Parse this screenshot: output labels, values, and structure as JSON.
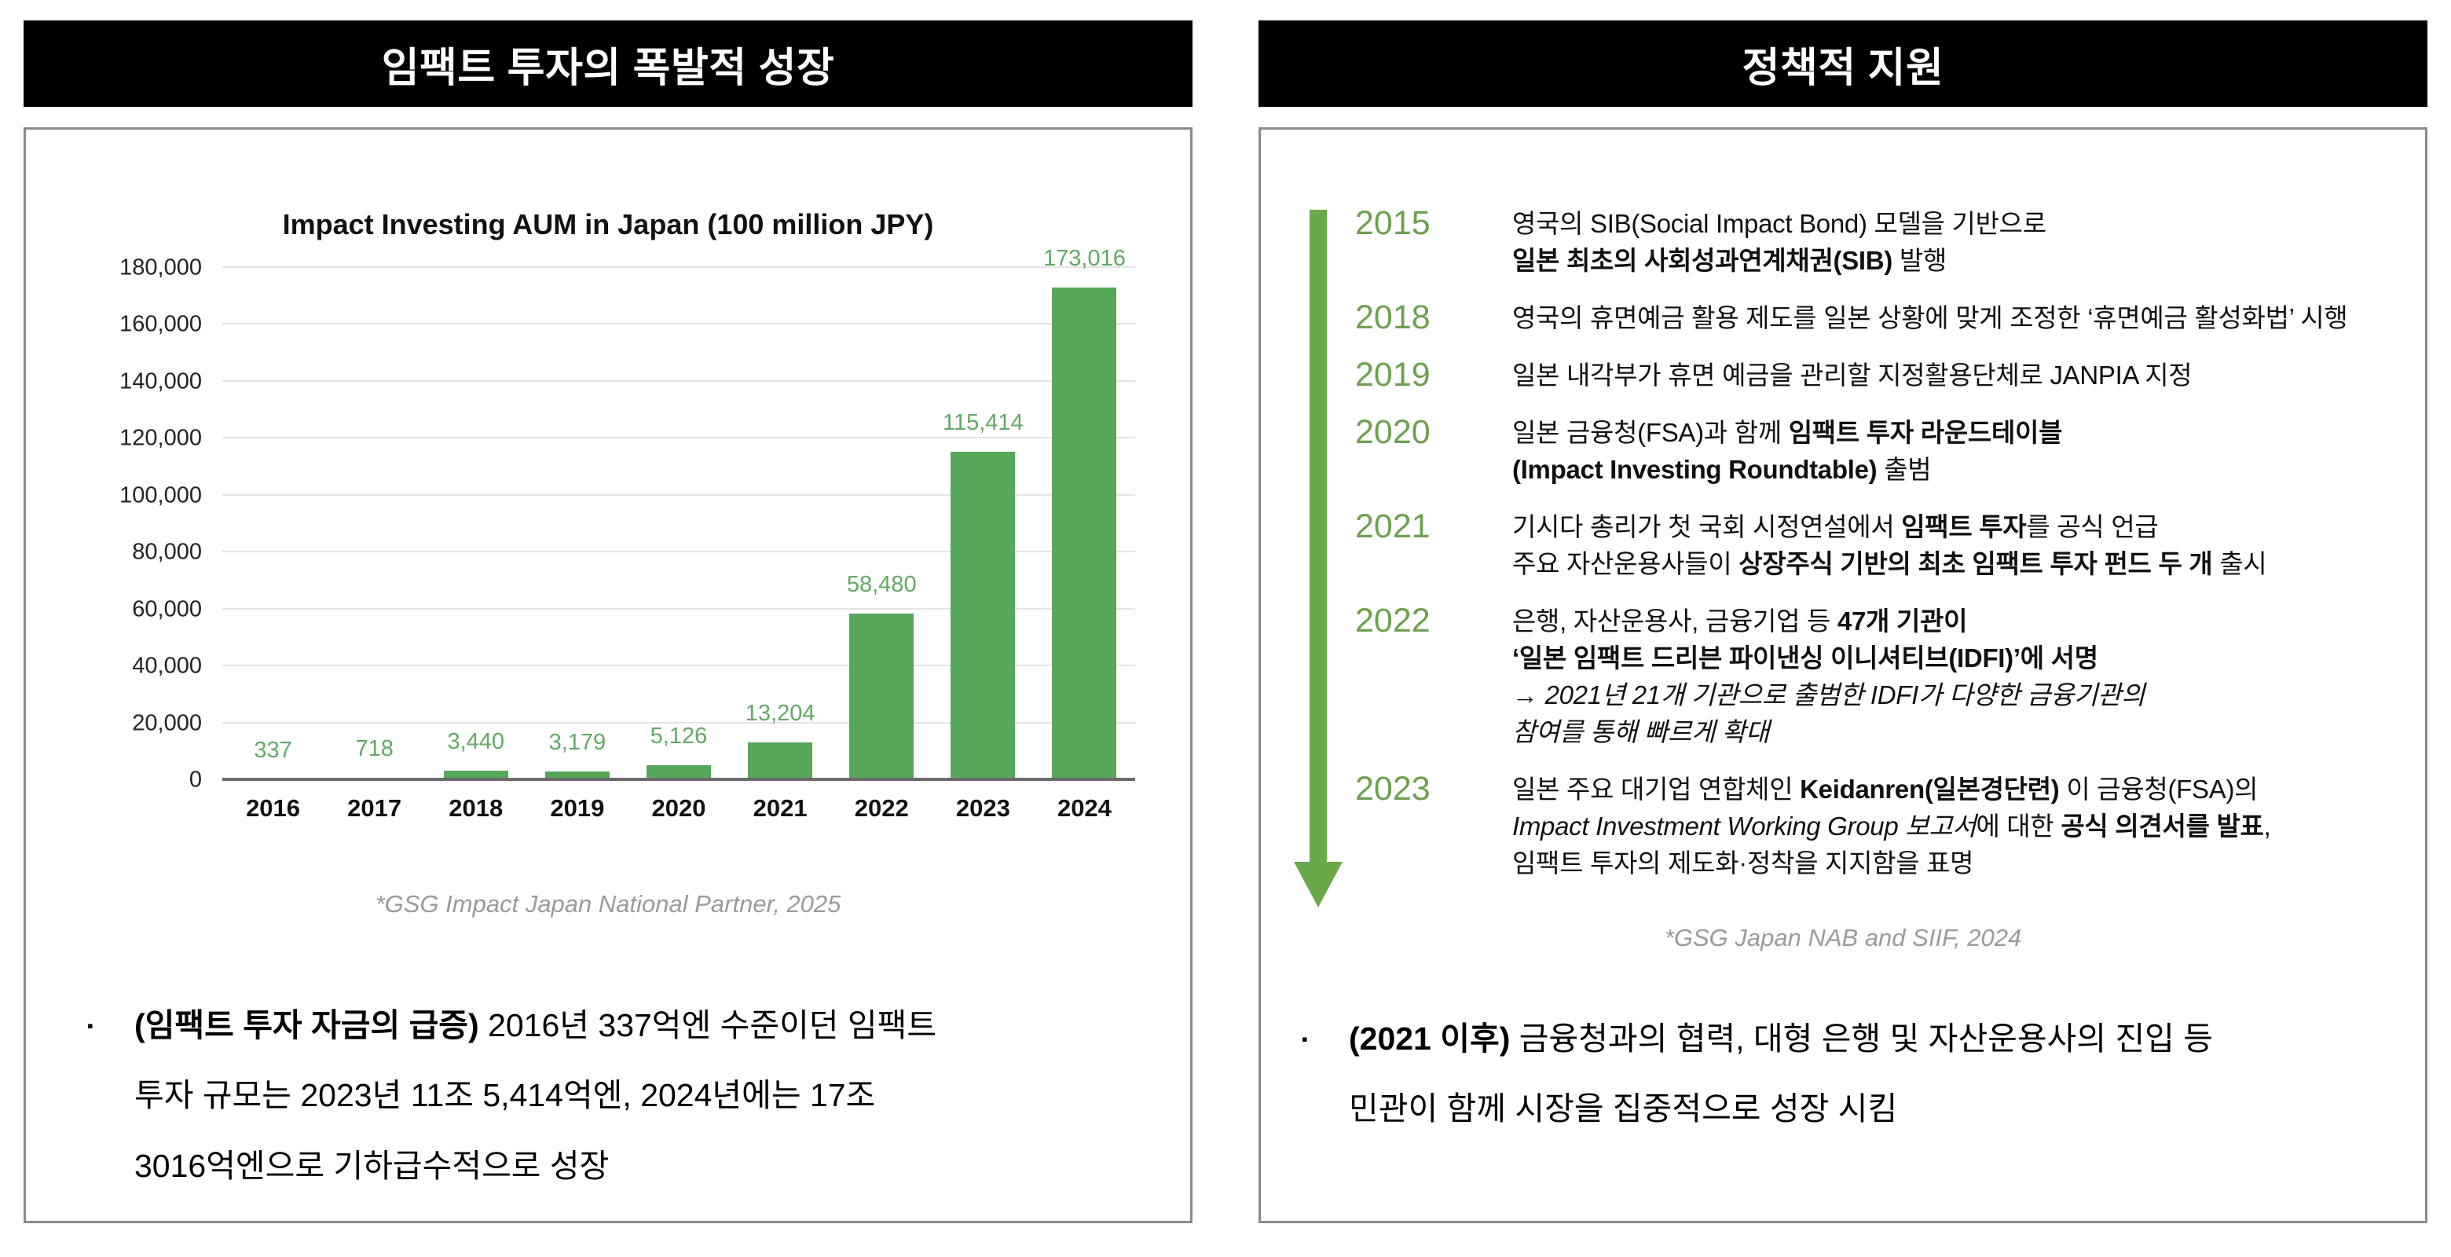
{
  "colors": {
    "header_bg": "#000000",
    "header_fg": "#ffffff",
    "panel_border": "#8a8a8a",
    "grid": "#e4e4e4",
    "axis": "#6b6b6b",
    "bar_green": "#57a75a",
    "value_green": "#63a865",
    "timeline_green": "#6ea04f",
    "arrow_green": "#6aa84c",
    "source_gray": "#9a9a9a"
  },
  "left": {
    "header": "임팩트 투자의 폭발적 성장",
    "source": "*GSG Impact Japan National Partner, 2025",
    "bullet": {
      "marker": "▪",
      "lines": [
        [
          {
            "text": "(임팩트 투자 자금의 급증)",
            "bold": true
          },
          {
            "text": " 2016년 337억엔 수준이던 임팩트"
          }
        ],
        [
          {
            "text": "투자 규모는 2023년 11조 5,414억엔, 2024년에는 17조"
          }
        ],
        [
          {
            "text": "3016억엔으로 기하급수적으로 성장"
          }
        ]
      ]
    }
  },
  "chart_data": {
    "type": "bar",
    "title": "Impact Investing AUM in Japan (100 million JPY)",
    "categories": [
      "2016",
      "2017",
      "2018",
      "2019",
      "2020",
      "2021",
      "2022",
      "2023",
      "2024"
    ],
    "values": [
      337,
      718,
      3440,
      3179,
      5126,
      13204,
      58480,
      115414,
      173016
    ],
    "value_labels": [
      "337",
      "718",
      "3,440",
      "3,179",
      "5,126",
      "13,204",
      "58,480",
      "115,414",
      "173,016"
    ],
    "xlabel": "",
    "ylabel": "",
    "ylim": [
      0,
      180000
    ],
    "ytick_step": 20000,
    "grid": true,
    "legend": "none"
  },
  "right": {
    "header": "정책적 지원",
    "source": "*GSG Japan NAB and SIIF, 2024",
    "timeline": [
      {
        "year": "2015",
        "lines": [
          [
            {
              "text": "영국의 SIB(Social Impact Bond) 모델을 기반으로"
            }
          ],
          [
            {
              "text": "일본 최초의 사회성과연계채권(SIB)",
              "bold": true
            },
            {
              "text": " 발행"
            }
          ]
        ]
      },
      {
        "year": "2018",
        "lines": [
          [
            {
              "text": "영국의 휴면예금 활용 제도를 일본 상황에 맞게 조정한 ‘휴면예금 활성화법’ 시행"
            }
          ]
        ]
      },
      {
        "year": "2019",
        "lines": [
          [
            {
              "text": "일본 내각부가 휴면 예금을 관리할 지정활용단체로 JANPIA 지정"
            }
          ]
        ]
      },
      {
        "year": "2020",
        "lines": [
          [
            {
              "text": "일본 금융청(FSA)과 함께 "
            },
            {
              "text": "임팩트 투자 라운드테이블",
              "bold": true
            }
          ],
          [
            {
              "text": "(Impact Investing Roundtable)",
              "bold": true
            },
            {
              "text": " 출범"
            }
          ]
        ]
      },
      {
        "year": "2021",
        "lines": [
          [
            {
              "text": "기시다 총리가 첫 국회 시정연설에서 "
            },
            {
              "text": "임팩트 투자",
              "bold": true
            },
            {
              "text": "를 공식 언급"
            }
          ],
          [
            {
              "text": "주요 자산운용사들이 "
            },
            {
              "text": "상장주식 기반의 최초 임팩트 투자 펀드 두 개",
              "bold": true
            },
            {
              "text": " 출시"
            }
          ]
        ]
      },
      {
        "year": "2022",
        "lines": [
          [
            {
              "text": "은행, 자산운용사, 금융기업 등 "
            },
            {
              "text": "47개 기관이",
              "bold": true
            }
          ],
          [
            {
              "text": "‘일본 임팩트 드리븐 파이낸싱 이니셔티브(IDFI)’에 서명",
              "bold": true
            }
          ],
          [
            {
              "text": "→ 2021년 21개 기관으로 출범한 IDFI가 다양한 금융기관의",
              "italic": true
            }
          ],
          [
            {
              "text": "참여를 통해 빠르게 확대",
              "italic": true
            }
          ]
        ]
      },
      {
        "year": "2023",
        "lines": [
          [
            {
              "text": "일본 주요 대기업 연합체인 "
            },
            {
              "text": "Keidanren(일본경단련)",
              "bold": true
            },
            {
              "text": " 이 금융청(FSA)의"
            }
          ],
          [
            {
              "text": "Impact Investment Working Group 보고서",
              "italic": true
            },
            {
              "text": "에 대한 "
            },
            {
              "text": "공식 의견서를 발표",
              "bold": true
            },
            {
              "text": ","
            }
          ],
          [
            {
              "text": "임팩트 투자의 제도화·정착을 지지함을 표명"
            }
          ]
        ]
      }
    ],
    "bullet": {
      "marker": "▪",
      "lines": [
        [
          {
            "text": "(2021 이후)",
            "bold": true
          },
          {
            "text": " 금융청과의 협력, 대형 은행 및 자산운용사의 진입 등"
          }
        ],
        [
          {
            "text": "민관이 함께 시장을 집중적으로 성장 시킴"
          }
        ]
      ]
    }
  }
}
